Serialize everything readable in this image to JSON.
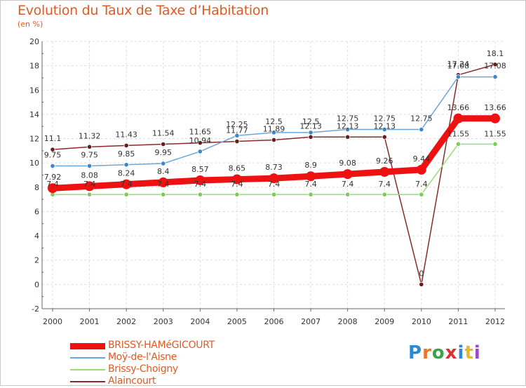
{
  "header": {
    "title": "Evolution du Taux de Taxe d’Habitation",
    "subtitle": "(en %)"
  },
  "brand": {
    "parts": [
      "P",
      "r",
      "o",
      "x",
      "i",
      "t",
      "i"
    ]
  },
  "chart_data": {
    "type": "line",
    "title": "Evolution du Taux de Taxe d’Habitation",
    "ylabel": "(en %)",
    "xlabel": "",
    "x": [
      "2000",
      "2001",
      "2002",
      "2003",
      "2004",
      "2005",
      "2006",
      "2007",
      "2008",
      "2009",
      "2010",
      "2011",
      "2012"
    ],
    "ylim": [
      -2,
      20
    ],
    "yticks": [
      -2,
      0,
      2,
      4,
      6,
      8,
      10,
      12,
      14,
      16,
      18,
      20
    ],
    "grid": true,
    "legend": "bottom-left",
    "series": [
      {
        "name": "BRISSY-HAMéGICOURT",
        "color": "#ee1111",
        "marker": "#ee1111",
        "values": [
          7.92,
          8.08,
          8.24,
          8.4,
          8.57,
          8.65,
          8.73,
          8.9,
          9.08,
          9.26,
          9.44,
          13.66,
          13.66
        ],
        "labels": [
          "7.92",
          "8.08",
          "8.24",
          "8.4",
          "8.57",
          "8.65",
          "8.73",
          "8.9",
          "9.08",
          "9.26",
          "9.44",
          "13.66",
          "13.66"
        ]
      },
      {
        "name": "Moÿ-de-l'Aisne",
        "color": "#6aa6d6",
        "marker": "#3e86c6",
        "values": [
          9.75,
          9.75,
          9.85,
          9.95,
          10.94,
          12.25,
          12.5,
          12.5,
          12.75,
          12.75,
          12.75,
          17.08,
          17.08
        ],
        "labels": [
          "9.75",
          "9.75",
          "9.85",
          "9.95",
          "10.94",
          "12.25",
          "12.5",
          "12.5",
          "12.75",
          "12.75",
          "12.75",
          "17.08",
          "17.08"
        ]
      },
      {
        "name": "Brissy-Choigny",
        "color": "#99dd77",
        "marker": "#7dcc55",
        "values": [
          7.4,
          7.4,
          7.4,
          7.4,
          7.4,
          7.4,
          7.4,
          7.4,
          7.4,
          7.4,
          7.4,
          11.55,
          11.55
        ],
        "labels": [
          "7.4",
          "7.4",
          "7.4",
          "7.4",
          "7.4",
          "7.4",
          "7.4",
          "7.4",
          "7.4",
          "7.4",
          "7.4",
          "11.55",
          "11.55"
        ]
      },
      {
        "name": "Alaincourt",
        "color": "#8a2a2a",
        "marker": "#6e1a1a",
        "values": [
          11.1,
          11.32,
          11.43,
          11.54,
          11.65,
          11.77,
          11.89,
          12.13,
          12.13,
          12.13,
          0,
          17.24,
          18.1
        ],
        "labels": [
          "11.1",
          "11.32",
          "11.43",
          "11.54",
          "11.65",
          "11.77",
          "11.89",
          "12.13",
          "12.13",
          "12.13",
          "0",
          "17.24",
          "18.1"
        ]
      }
    ]
  }
}
